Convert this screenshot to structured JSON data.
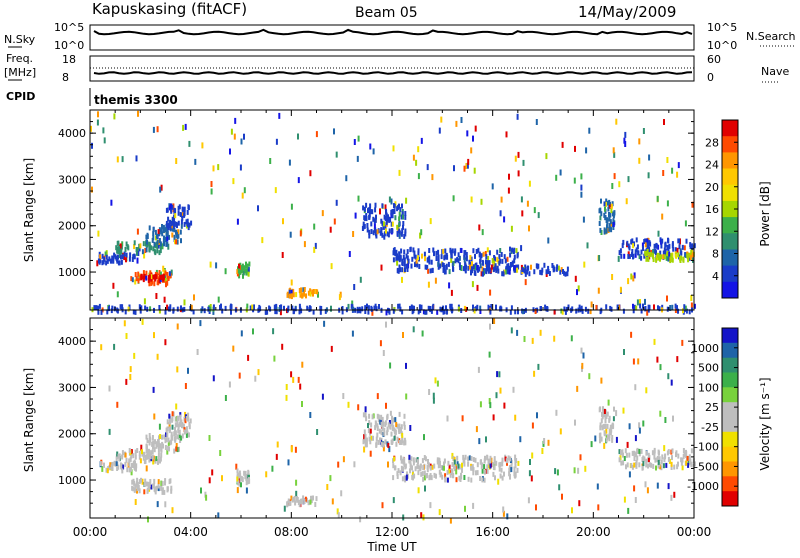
{
  "header": {
    "radar": "Kapuskasing (fitACF)",
    "beam": "Beam 05",
    "date": "14/May/2009"
  },
  "panels": {
    "nsky_label": "N.Sky",
    "nsky_ticks": [
      "10^5",
      "10^0"
    ],
    "nsearch_label": "N.Search",
    "nsearch_ticks": [
      "10^5",
      "10^0"
    ],
    "freq_label": "Freq.",
    "freq_unit": "[MHz]",
    "freq_ticks": [
      "18",
      "8"
    ],
    "nave_label": "Nave",
    "nave_ticks": [
      "60",
      "0"
    ],
    "cpid_label": "CPID",
    "cpid_value": "themis 3300"
  },
  "chart_data": [
    {
      "type": "heatmap",
      "name": "power",
      "ylabel": "Slant Range [km]",
      "xlabel": "",
      "xlim_hours": [
        0,
        24
      ],
      "ylim_km": [
        180,
        4500
      ],
      "yticks": [
        "4000",
        "3000",
        "2000",
        "1000"
      ],
      "colorbar_label": "Power [dB]",
      "colorbar_ticks": [
        "28",
        "24",
        "20",
        "16",
        "12",
        "8",
        "4"
      ],
      "colorbar_colors": [
        "#e00000",
        "#ff4a00",
        "#ff9600",
        "#ffc800",
        "#f0e000",
        "#a6d600",
        "#3cb04a",
        "#2f8f6f",
        "#1e64a8",
        "#1a3cc8",
        "#1414e6"
      ],
      "features": [
        {
          "t0": 0.3,
          "t1": 1.8,
          "r0": 1250,
          "r1": 1450,
          "c": "#1a3cc8"
        },
        {
          "t0": 1.0,
          "t1": 2.8,
          "r0": 1450,
          "r1": 1700,
          "c": "#2f8f6f"
        },
        {
          "t0": 2.2,
          "t1": 3.6,
          "r0": 1650,
          "r1": 2050,
          "c": "#1e64a8"
        },
        {
          "t0": 3.0,
          "t1": 4.0,
          "r0": 2000,
          "r1": 2500,
          "c": "#1a3cc8"
        },
        {
          "t0": 1.6,
          "t1": 3.2,
          "r0": 780,
          "r1": 1050,
          "c": "#ff4a00"
        },
        {
          "t0": 2.0,
          "t1": 2.9,
          "r0": 850,
          "r1": 980,
          "c": "#e00000"
        },
        {
          "t0": 5.8,
          "t1": 6.3,
          "r0": 950,
          "r1": 1250,
          "c": "#3cb04a"
        },
        {
          "t0": 7.8,
          "t1": 9.0,
          "r0": 520,
          "r1": 680,
          "c": "#ff9600"
        },
        {
          "t0": 10.8,
          "t1": 12.5,
          "r0": 1800,
          "r1": 2500,
          "c": "#1a3cc8"
        },
        {
          "t0": 12.0,
          "t1": 17.0,
          "r0": 1050,
          "r1": 1550,
          "c": "#1a3cc8"
        },
        {
          "t0": 15.0,
          "t1": 19.0,
          "r0": 1000,
          "r1": 1200,
          "c": "#1a3cc8"
        },
        {
          "t0": 20.2,
          "t1": 20.8,
          "r0": 1900,
          "r1": 2600,
          "c": "#1e64a8"
        },
        {
          "t0": 21.0,
          "t1": 24.0,
          "r0": 1350,
          "r1": 1750,
          "c": "#1a3cc8"
        },
        {
          "t0": 22.0,
          "t1": 24.0,
          "r0": 1300,
          "r1": 1500,
          "c": "#a6d600"
        },
        {
          "t0": 0.0,
          "t1": 24.0,
          "r0": 180,
          "r1": 320,
          "c": "#1a3cc8"
        }
      ]
    },
    {
      "type": "heatmap",
      "name": "velocity",
      "ylabel": "Slant Range [km]",
      "xlabel": "Time UT",
      "xlim_hours": [
        0,
        24
      ],
      "ylim_km": [
        180,
        4500
      ],
      "yticks": [
        "4000",
        "3000",
        "2000",
        "1000"
      ],
      "xticks": [
        "00:00",
        "04:00",
        "08:00",
        "12:00",
        "16:00",
        "20:00",
        "00:00"
      ],
      "colorbar_label": "Velocity [m s⁻¹]",
      "colorbar_ticks": [
        "1000",
        "500",
        "100",
        "25",
        "-25",
        "-100",
        "-500",
        "-1000"
      ],
      "colorbar_colors": [
        "#1414c8",
        "#1e64a8",
        "#2f8f6f",
        "#3cb04a",
        "#78d23c",
        "#bebebe",
        "#bebebe",
        "#f0e000",
        "#ffc800",
        "#ff9600",
        "#ff4a00",
        "#e00000"
      ],
      "features": [
        {
          "t0": 0.3,
          "t1": 1.8,
          "r0": 1250,
          "r1": 1450,
          "c": "#bebebe"
        },
        {
          "t0": 1.0,
          "t1": 2.8,
          "r0": 1450,
          "r1": 1700,
          "c": "#bebebe"
        },
        {
          "t0": 2.2,
          "t1": 3.6,
          "r0": 1650,
          "r1": 2050,
          "c": "#bebebe"
        },
        {
          "t0": 3.0,
          "t1": 4.0,
          "r0": 2000,
          "r1": 2500,
          "c": "#bebebe"
        },
        {
          "t0": 1.6,
          "t1": 3.2,
          "r0": 780,
          "r1": 1050,
          "c": "#bebebe"
        },
        {
          "t0": 5.8,
          "t1": 6.3,
          "r0": 950,
          "r1": 1250,
          "c": "#bebebe"
        },
        {
          "t0": 7.8,
          "t1": 9.0,
          "r0": 520,
          "r1": 680,
          "c": "#bebebe"
        },
        {
          "t0": 10.8,
          "t1": 12.5,
          "r0": 1800,
          "r1": 2500,
          "c": "#bebebe"
        },
        {
          "t0": 12.0,
          "t1": 17.0,
          "r0": 1050,
          "r1": 1550,
          "c": "#bebebe"
        },
        {
          "t0": 20.2,
          "t1": 20.8,
          "r0": 1900,
          "r1": 2600,
          "c": "#bebebe"
        },
        {
          "t0": 21.0,
          "t1": 24.0,
          "r0": 1300,
          "r1": 1700,
          "c": "#bebebe"
        }
      ]
    }
  ]
}
